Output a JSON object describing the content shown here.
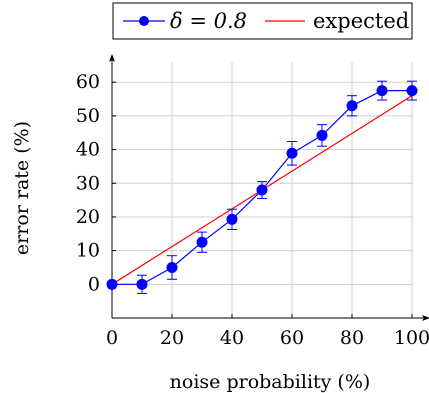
{
  "chart_data": {
    "type": "line",
    "xlabel": "noise probability (%)",
    "ylabel": "error rate (%)",
    "xlim": [
      0,
      100
    ],
    "ylim": [
      -10,
      66
    ],
    "xticks": [
      0,
      20,
      40,
      60,
      80,
      100
    ],
    "yticks": [
      0,
      10,
      20,
      30,
      40,
      50,
      60
    ],
    "grid": true,
    "legend_position": "top",
    "series": [
      {
        "name": "δ = 0.8",
        "color": "#0000ff",
        "marker": "circle",
        "x": [
          0,
          10,
          20,
          30,
          40,
          50,
          60,
          70,
          80,
          90,
          100
        ],
        "y": [
          0,
          0,
          5,
          12.5,
          19.3,
          28,
          38.9,
          44.2,
          53,
          57.5,
          57.5
        ],
        "error": [
          0,
          2.7,
          3.5,
          3,
          3,
          2.5,
          3.5,
          3.2,
          3,
          2.8,
          2.8
        ]
      },
      {
        "name": "expected",
        "color": "#ff0000",
        "marker": "none",
        "x": [
          0,
          100
        ],
        "y": [
          0,
          56
        ]
      }
    ]
  }
}
